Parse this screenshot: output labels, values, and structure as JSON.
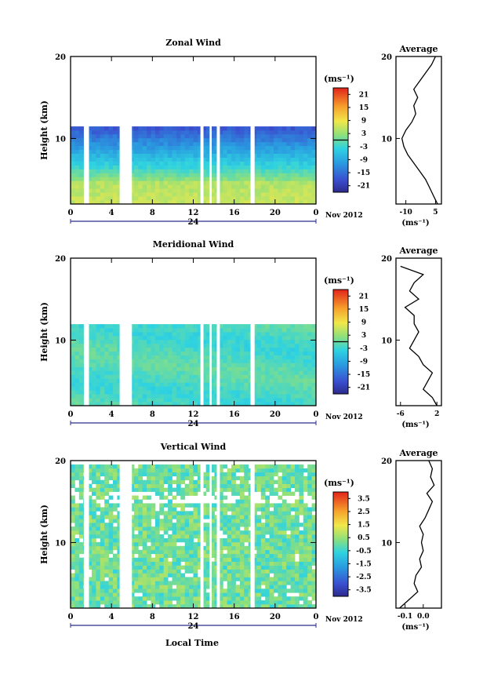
{
  "figure": {
    "x_axis_title": "Local Time",
    "date_label": "Nov 2012",
    "day_label": "24"
  },
  "chart_data": [
    {
      "type": "heatmap",
      "title": "Zonal Wind",
      "ylabel": "Height (km)",
      "unit_label": "(ms⁻¹)",
      "x_ticks": [
        "0",
        "4",
        "8",
        "12",
        "16",
        "20",
        "0"
      ],
      "xlim": [
        0,
        24
      ],
      "y_ticks": [
        "10",
        "20"
      ],
      "ylim": [
        2,
        20
      ],
      "colorbar": {
        "min": -24,
        "max": 24,
        "ticks": [
          "21",
          "15",
          "9",
          "3",
          "-3",
          "-9",
          "-15",
          "-21"
        ],
        "contour_level": 0
      },
      "data_gaps_hours": [
        [
          1.3,
          1.8
        ],
        [
          4.8,
          6.0
        ],
        [
          12.7,
          13.0
        ],
        [
          13.6,
          13.8
        ],
        [
          14.3,
          14.6
        ],
        [
          17.6,
          18.0
        ]
      ],
      "average_profile": {
        "title": "Average",
        "xlabel": "(ms⁻¹)",
        "x_ticks": [
          "-10",
          "5"
        ],
        "xlim": [
          -15,
          8
        ],
        "y_ticks": [
          "10",
          "20"
        ],
        "heights_km": [
          2,
          3,
          4,
          5,
          6,
          7,
          8,
          9,
          10,
          11,
          12,
          13,
          14,
          15,
          16,
          17,
          18,
          19,
          20
        ],
        "values": [
          6,
          4,
          2,
          0,
          -3,
          -6,
          -9,
          -11,
          -12,
          -10,
          -7,
          -5,
          -6,
          -4,
          -6,
          -3,
          0,
          3,
          5
        ]
      }
    },
    {
      "type": "heatmap",
      "title": "Meridional Wind",
      "ylabel": "Height (km)",
      "unit_label": "(ms⁻¹)",
      "x_ticks": [
        "0",
        "4",
        "8",
        "12",
        "16",
        "20",
        "0"
      ],
      "xlim": [
        0,
        24
      ],
      "y_ticks": [
        "10",
        "20"
      ],
      "ylim": [
        2,
        20
      ],
      "colorbar": {
        "min": -24,
        "max": 24,
        "ticks": [
          "21",
          "15",
          "9",
          "3",
          "-3",
          "-9",
          "-15",
          "-21"
        ],
        "contour_level": 0
      },
      "data_gaps_hours": [
        [
          1.3,
          1.8
        ],
        [
          4.8,
          6.0
        ],
        [
          12.7,
          13.0
        ],
        [
          13.6,
          13.8
        ],
        [
          14.3,
          14.6
        ],
        [
          17.6,
          18.0
        ]
      ],
      "average_profile": {
        "title": "Average",
        "xlabel": "(ms⁻¹)",
        "x_ticks": [
          "-6",
          "2"
        ],
        "xlim": [
          -7,
          3
        ],
        "y_ticks": [
          "10",
          "20"
        ],
        "heights_km": [
          2,
          3,
          4,
          5,
          6,
          7,
          8,
          9,
          10,
          11,
          12,
          13,
          14,
          15,
          16,
          17,
          18,
          19
        ],
        "values": [
          2,
          1,
          -1,
          0,
          1,
          -1,
          -2,
          -4,
          -3,
          -2,
          -3,
          -3,
          -5,
          -2,
          -4,
          -3,
          -1,
          -6
        ]
      }
    },
    {
      "type": "heatmap",
      "title": "Vertical Wind",
      "ylabel": "Height (km)",
      "unit_label": "(ms⁻¹)",
      "x_ticks": [
        "0",
        "4",
        "8",
        "12",
        "16",
        "20",
        "0"
      ],
      "xlim": [
        0,
        24
      ],
      "y_ticks": [
        "10",
        "20"
      ],
      "ylim": [
        2,
        20
      ],
      "colorbar": {
        "min": -4,
        "max": 4,
        "ticks": [
          "3.5",
          "2.5",
          "1.5",
          "0.5",
          "-0.5",
          "-1.5",
          "-2.5",
          "-3.5"
        ],
        "contour_level": null
      },
      "data_gaps_hours": [
        [
          1.3,
          1.8
        ],
        [
          4.8,
          6.0
        ],
        [
          12.7,
          13.0
        ],
        [
          13.6,
          13.8
        ],
        [
          14.3,
          14.6
        ],
        [
          17.6,
          18.0
        ]
      ],
      "average_profile": {
        "title": "Average",
        "xlabel": "(ms⁻¹)",
        "x_ticks": [
          "-0.1",
          "0.0"
        ],
        "xlim": [
          -0.15,
          0.1
        ],
        "y_ticks": [
          "10",
          "20"
        ],
        "heights_km": [
          2,
          3,
          4,
          5,
          6,
          7,
          8,
          9,
          10,
          11,
          12,
          13,
          14,
          15,
          16,
          17,
          18,
          19,
          20
        ],
        "values": [
          -0.13,
          -0.08,
          -0.03,
          -0.05,
          -0.04,
          -0.01,
          -0.02,
          0.0,
          -0.01,
          0.0,
          -0.02,
          0.01,
          0.03,
          0.05,
          0.02,
          0.06,
          0.04,
          0.05,
          0.03
        ]
      }
    }
  ]
}
